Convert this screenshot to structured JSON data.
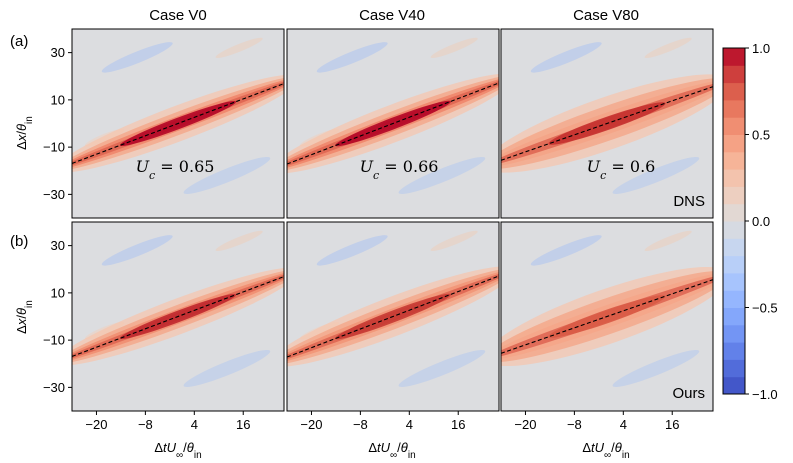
{
  "chart_data": {
    "type": "heatmap",
    "colormap": "coolwarm",
    "grid": "off",
    "columns": [
      {
        "title": "Case V0",
        "uc_value": "0.65",
        "slope": 0.65
      },
      {
        "title": "Case V40",
        "uc_value": "0.66",
        "slope": 0.66
      },
      {
        "title": "Case V80",
        "uc_value": "0.6",
        "slope": 0.6
      }
    ],
    "rows": [
      {
        "label": "(a)",
        "corner_label": "DNS"
      },
      {
        "label": "(b)",
        "corner_label": "Ours"
      }
    ],
    "uc_symbol": "U",
    "uc_subscript": "c",
    "uc_eq": " = ",
    "xlabel": {
      "delta": "Δ",
      "t": "t",
      "U": "U",
      "sub_inf": "∞",
      "slash": "/",
      "theta": "θ",
      "sub_in": "in"
    },
    "ylabel": {
      "delta": "Δ",
      "x": "x",
      "slash": "/",
      "theta": "θ",
      "sub_in": "in"
    },
    "xlim": [
      -26,
      26
    ],
    "ylim": [
      -40,
      40
    ],
    "x_ticks": [
      -20,
      -8,
      4,
      16
    ],
    "x_tick_labels": [
      "−20",
      "−8",
      "4",
      "16"
    ],
    "y_ticks": [
      30,
      10,
      -10,
      -30
    ],
    "y_tick_labels": [
      "30",
      "10",
      "−10",
      "−30"
    ],
    "colorbar": {
      "range": [
        -1.0,
        1.0
      ],
      "ticks": [
        1.0,
        0.5,
        0.0,
        -0.5,
        -1.0
      ],
      "tick_labels": [
        "1.0",
        "0.5",
        "0.0",
        "−0.5",
        "−1.0"
      ]
    },
    "line_style": "dashed",
    "colors": {
      "line": "#000000",
      "background": "#dcdde0"
    }
  }
}
